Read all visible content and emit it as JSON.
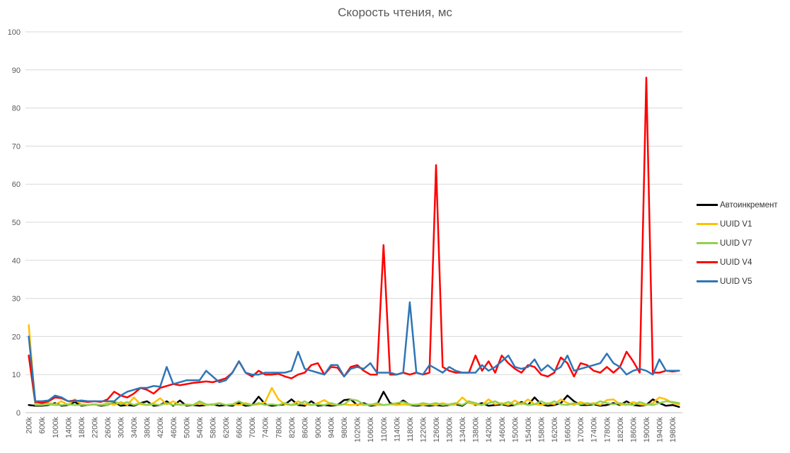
{
  "chart_data": {
    "type": "line",
    "title": "Скорость чтения, мс",
    "xlabel": "",
    "ylabel": "",
    "ylim": [
      0,
      100
    ],
    "y_ticks": [
      0,
      10,
      20,
      30,
      40,
      50,
      60,
      70,
      80,
      90,
      100
    ],
    "grid": true,
    "legend_position": "right",
    "x_points_per_label": 2,
    "x_tick_labels": [
      "200k",
      "600k",
      "1000k",
      "1400k",
      "1800k",
      "2200k",
      "2600k",
      "3000k",
      "3400k",
      "3800k",
      "4200k",
      "4600k",
      "5000k",
      "5400k",
      "5800k",
      "6200k",
      "6600k",
      "7000k",
      "7400k",
      "7800k",
      "8200k",
      "8600k",
      "9000k",
      "9400k",
      "9800k",
      "10200k",
      "10600k",
      "11000k",
      "11400k",
      "11800k",
      "12200k",
      "12600k",
      "13000k",
      "13400k",
      "13800k",
      "14200k",
      "14600k",
      "15000k",
      "15400k",
      "15800k",
      "16200k",
      "16600k",
      "17000k",
      "17400k",
      "17800k",
      "18200k",
      "18600k",
      "19000k",
      "19400k",
      "19800k"
    ],
    "series": [
      {
        "name": "Автоинкремент",
        "color": "#000000",
        "values": [
          2,
          1.8,
          1.8,
          2,
          2.5,
          1.8,
          2,
          2.8,
          1.8,
          2,
          2.2,
          1.8,
          2,
          2.8,
          1.8,
          2,
          1.8,
          2.5,
          3,
          1.8,
          2,
          3,
          1.8,
          3.2,
          1.8,
          2,
          1.8,
          2,
          2.2,
          1.8,
          2,
          1.8,
          2.5,
          1.8,
          2,
          4.2,
          2.2,
          1.8,
          2,
          2.2,
          3.5,
          2,
          1.8,
          3,
          1.8,
          2,
          1.8,
          2,
          3.3,
          3.5,
          2,
          2.5,
          1.8,
          2,
          5.5,
          2.5,
          2,
          3.2,
          2,
          1.8,
          2,
          1.8,
          2,
          1.8,
          2,
          2.2,
          1.8,
          3,
          2,
          2.5,
          1.8,
          2,
          2.2,
          1.8,
          2,
          2.8,
          2,
          4,
          2.2,
          1.8,
          2,
          2.5,
          4.5,
          3,
          2,
          2,
          2.2,
          1.8,
          2,
          2.5,
          2,
          3,
          2,
          1.8,
          2,
          3.5,
          2.5,
          1.8,
          2,
          1.5
        ]
      },
      {
        "name": "UUID V1",
        "color": "#FFC000",
        "values": [
          23,
          2.2,
          2,
          2.5,
          2.2,
          3,
          2,
          3.5,
          2.2,
          2,
          2.2,
          2,
          2.5,
          2,
          2.8,
          2,
          4,
          2.2,
          2,
          2.5,
          3.8,
          2.2,
          3,
          2,
          2.2,
          2,
          2.5,
          2,
          2.2,
          2.5,
          2,
          2.2,
          2,
          2.5,
          2,
          2.2,
          2.8,
          6.5,
          3.5,
          2.2,
          2,
          3,
          2.2,
          2,
          2.5,
          3.3,
          2.2,
          2,
          2.2,
          2,
          2.2,
          2,
          2.2,
          2,
          2,
          2.2,
          2,
          2.2,
          2,
          2.2,
          2,
          2.2,
          2,
          2.5,
          2,
          2.2,
          4,
          2.5,
          2.2,
          2,
          3.5,
          2.2,
          2.5,
          2,
          3.2,
          2.2,
          3.5,
          2.2,
          2,
          2.5,
          2.2,
          3.5,
          2.5,
          2,
          2.8,
          2.2,
          2.5,
          2,
          3.3,
          3.5,
          2.2,
          2,
          2.8,
          2.2,
          2,
          2.5,
          4,
          3.5,
          2.5,
          2.2
        ]
      },
      {
        "name": "UUID V7",
        "color": "#92D050",
        "values": [
          15,
          2,
          2,
          2.2,
          2,
          2,
          2.2,
          2,
          2,
          2,
          2.2,
          2,
          2,
          3,
          2.2,
          2.8,
          2,
          2.5,
          2,
          2.2,
          2,
          2.5,
          2,
          2.2,
          2,
          2,
          3,
          2.2,
          2,
          2.5,
          2,
          2.2,
          3,
          2.2,
          2,
          2.5,
          2,
          2.2,
          2,
          2.5,
          2,
          2.2,
          3,
          2,
          2.2,
          2,
          2.5,
          2,
          2.2,
          3.5,
          3.2,
          2.2,
          2,
          2.5,
          2,
          2.2,
          2.5,
          2.8,
          2.2,
          2,
          2.5,
          2.2,
          2.5,
          2,
          2.2,
          2.5,
          2,
          3,
          2.5,
          2,
          2.5,
          3,
          2.2,
          2.8,
          2,
          2.5,
          2,
          2.2,
          3,
          2.2,
          3,
          2.2,
          2,
          2.5,
          2.2,
          2.5,
          2.2,
          3,
          2.5,
          2.2,
          2.5,
          2.2,
          2,
          2.8,
          2.2,
          2,
          2.5,
          3,
          2.8,
          2.5
        ]
      },
      {
        "name": "UUID V4",
        "color": "#FF0000",
        "values": [
          15,
          2.8,
          2.5,
          3,
          4,
          3.8,
          3,
          3.2,
          3,
          2.8,
          3,
          2.8,
          3.5,
          5.5,
          4.5,
          4,
          5,
          6.5,
          6,
          5,
          6.5,
          7,
          7.5,
          7.2,
          7.5,
          7.8,
          8,
          8.2,
          8,
          8.5,
          9,
          10.5,
          13.5,
          10.5,
          9.5,
          11,
          10,
          10,
          10.2,
          9.5,
          9,
          10,
          10.5,
          12.5,
          13,
          10,
          12,
          11.8,
          9.5,
          12,
          12.5,
          11,
          10,
          10,
          44,
          10,
          10,
          10.5,
          10,
          10.5,
          10,
          10.5,
          65,
          12,
          11,
          10.5,
          10.5,
          10.5,
          15,
          11,
          13.5,
          10.5,
          15,
          13,
          11.5,
          10.5,
          12.5,
          12,
          10,
          9.5,
          10.5,
          14.5,
          13,
          9.5,
          13,
          12.5,
          11,
          10.5,
          12,
          10.5,
          12,
          16,
          13.5,
          10.5,
          88,
          10.5,
          10.5,
          11,
          10.8,
          11
        ]
      },
      {
        "name": "UUID V5",
        "color": "#2E75B6",
        "values": [
          20,
          3,
          3,
          3.2,
          4.5,
          4,
          3,
          3,
          3.2,
          3,
          3,
          3,
          3,
          3,
          4.5,
          5.5,
          6,
          6.5,
          6.5,
          7,
          6.8,
          12,
          7.5,
          8,
          8.5,
          8.5,
          8.5,
          11,
          9.5,
          8,
          8.5,
          10.5,
          13.5,
          10.5,
          10,
          10,
          10.5,
          10.5,
          10.5,
          10.5,
          11,
          16,
          11.5,
          11,
          10.5,
          10,
          12.5,
          12.5,
          9.5,
          11.5,
          12,
          11.5,
          13,
          10.5,
          10.5,
          10.5,
          10,
          10.5,
          29,
          10.5,
          10,
          12.5,
          11.5,
          10.5,
          12,
          11,
          10.5,
          10.5,
          10.5,
          12.5,
          11,
          12,
          13.5,
          15,
          12,
          11.5,
          12,
          14,
          11,
          12.5,
          11,
          12,
          15,
          11,
          11.5,
          12,
          12.5,
          13,
          15.5,
          13,
          12,
          10,
          11,
          11.5,
          11,
          10,
          14,
          11,
          11,
          11
        ]
      }
    ]
  }
}
